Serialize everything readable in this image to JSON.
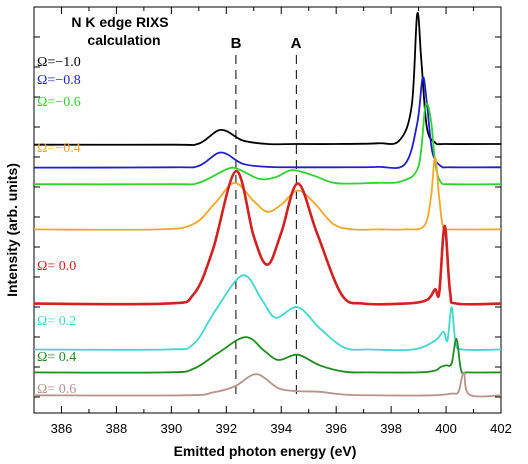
{
  "chart_data": {
    "type": "line",
    "title": "N K edge RIXS\ncalculation",
    "title_lines": [
      "N K edge RIXS",
      "calculation"
    ],
    "xlabel": "Emitted photon energy (eV)",
    "ylabel": "Intensity (arb. units)",
    "xlim": [
      385,
      402
    ],
    "xticks": [
      386,
      388,
      390,
      392,
      394,
      396,
      398,
      400,
      402
    ],
    "y_ticks_labels": false,
    "grid": false,
    "reference_lines": [
      {
        "label": "B",
        "x": 392.35,
        "style": "dashed"
      },
      {
        "label": "A",
        "x": 394.55,
        "style": "dashed"
      }
    ],
    "series": [
      {
        "name": "Ω=−1.0",
        "color": "#000000",
        "x": [
          385,
          390,
          391,
          391.8,
          392.6,
          393.5,
          394.5,
          396,
          397.5,
          398.3,
          398.75,
          398.95,
          399.1,
          399.3,
          399.6,
          400,
          402
        ],
        "values": [
          0.7,
          0.7,
          0.73,
          1.12,
          0.82,
          0.72,
          0.72,
          0.72,
          0.74,
          0.82,
          1.8,
          4.4,
          3.1,
          1.2,
          0.76,
          0.72,
          0.72
        ]
      },
      {
        "name": "Ω=−0.8",
        "color": "#1f1fcc",
        "x": [
          385,
          390,
          391,
          391.8,
          392.6,
          393.5,
          394.5,
          396,
          397.5,
          398.5,
          398.95,
          399.15,
          399.3,
          399.5,
          399.8,
          400.2,
          402
        ],
        "values": [
          0.05,
          0.06,
          0.1,
          0.48,
          0.16,
          0.07,
          0.06,
          0.06,
          0.07,
          0.15,
          1.3,
          2.6,
          1.9,
          0.5,
          0.1,
          0.06,
          0.06
        ]
      },
      {
        "name": "Ω=−0.6",
        "color": "#2fd32f",
        "x": [
          385,
          390,
          391,
          392,
          392.4,
          393.2,
          393.8,
          394.4,
          395.2,
          396,
          397.5,
          398.4,
          399,
          399.25,
          399.45,
          399.6,
          399.8,
          400.2,
          402
        ],
        "values": [
          -0.42,
          -0.42,
          -0.38,
          0.0,
          0.02,
          -0.27,
          -0.22,
          -0.02,
          -0.18,
          -0.39,
          -0.38,
          -0.33,
          0.1,
          1.8,
          1.4,
          0.2,
          -0.35,
          -0.42,
          -0.42
        ]
      },
      {
        "name": "Ω=−0.4",
        "color": "#f5a623",
        "x": [
          385,
          389.5,
          390.8,
          391.6,
          392.3,
          393.0,
          393.5,
          394.0,
          394.6,
          395.2,
          395.9,
          396.6,
          397.5,
          398.5,
          399.2,
          399.45,
          399.6,
          399.75,
          399.9,
          400.2,
          402
        ],
        "values": [
          -1.7,
          -1.7,
          -1.55,
          -0.95,
          -0.38,
          -0.9,
          -1.2,
          -1.0,
          -0.6,
          -0.95,
          -1.55,
          -1.7,
          -1.7,
          -1.7,
          -1.6,
          -0.8,
          0.35,
          -0.8,
          -1.65,
          -1.7,
          -1.7
        ]
      },
      {
        "name": "Ω= 0.0",
        "color": "#d42020",
        "x": [
          385,
          389.8,
          390.8,
          391.5,
          392.35,
          393.0,
          393.5,
          394.0,
          394.6,
          395.3,
          396.2,
          397.0,
          398.5,
          399.3,
          399.6,
          399.75,
          399.95,
          400.15,
          400.4,
          402
        ],
        "values": [
          -3.8,
          -3.8,
          -3.55,
          -2.3,
          -0.05,
          -1.9,
          -2.7,
          -1.8,
          -0.4,
          -1.8,
          -3.55,
          -3.8,
          -3.8,
          -3.7,
          -3.4,
          -3.5,
          -1.6,
          -3.5,
          -3.8,
          -3.8
        ]
      },
      {
        "name": "Ω= 0.2",
        "color": "#3fd8d0",
        "x": [
          385,
          389.8,
          390.8,
          391.6,
          392.6,
          393.3,
          393.8,
          394.6,
          395.4,
          396.3,
          397.2,
          398.8,
          399.6,
          399.9,
          400.05,
          400.2,
          400.35,
          400.6,
          402
        ],
        "values": [
          -5.1,
          -5.1,
          -4.95,
          -4.0,
          -3.0,
          -3.7,
          -4.2,
          -3.9,
          -4.5,
          -5.05,
          -5.1,
          -5.1,
          -4.85,
          -4.6,
          -4.85,
          -3.9,
          -4.9,
          -5.1,
          -5.1
        ]
      },
      {
        "name": "Ω= 0.4",
        "color": "#1e8c1e",
        "x": [
          385,
          389.8,
          390.8,
          391.7,
          392.7,
          393.4,
          393.9,
          394.6,
          395.4,
          396.3,
          397.2,
          399.0,
          399.6,
          399.8,
          400.0,
          400.2,
          400.38,
          400.55,
          400.8,
          402
        ],
        "values": [
          -5.75,
          -5.75,
          -5.65,
          -5.2,
          -4.75,
          -5.15,
          -5.4,
          -5.25,
          -5.55,
          -5.73,
          -5.75,
          -5.75,
          -5.7,
          -5.6,
          -5.55,
          -5.5,
          -4.8,
          -5.7,
          -5.75,
          -5.75
        ]
      },
      {
        "name": "Ω= 0.6",
        "color": "#b8938a",
        "x": [
          385,
          390.5,
          391.5,
          392.3,
          393.1,
          393.9,
          394.6,
          395.4,
          396.3,
          397.5,
          399.5,
          400.2,
          400.45,
          400.65,
          400.85,
          402
        ],
        "values": [
          -6.4,
          -6.4,
          -6.32,
          -6.15,
          -5.8,
          -6.2,
          -6.28,
          -6.3,
          -6.38,
          -6.4,
          -6.4,
          -6.35,
          -6.3,
          -5.75,
          -6.38,
          -6.4
        ]
      }
    ]
  }
}
